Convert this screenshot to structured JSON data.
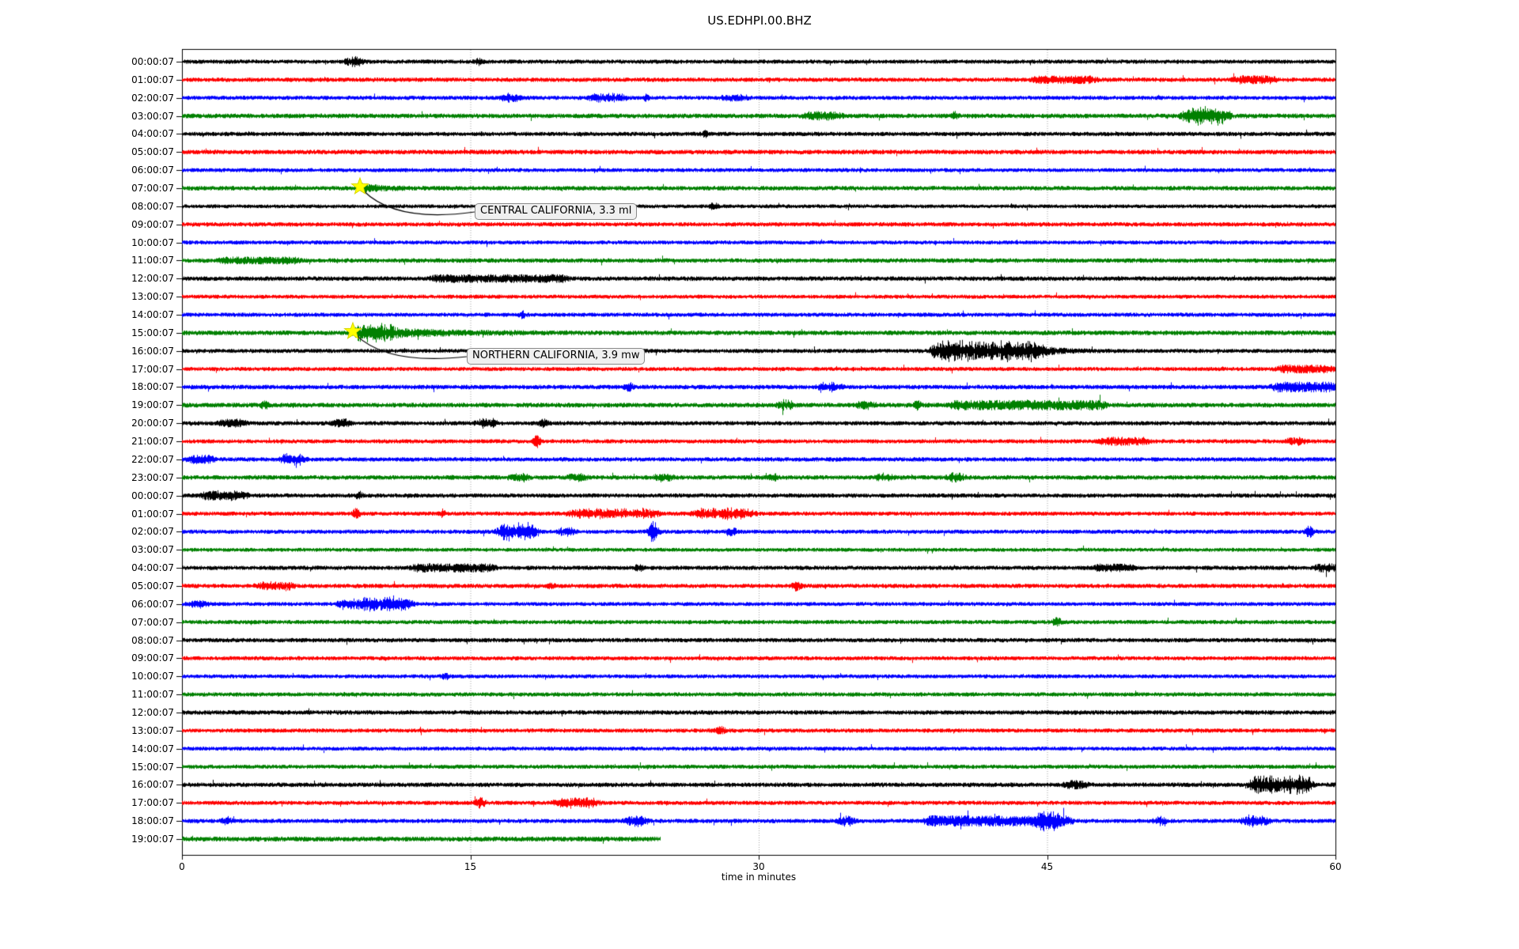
{
  "chart_data": {
    "type": "line",
    "subtype": "seismogram-helicorder",
    "title": "US.EDHPI.00.BHZ",
    "xlabel": "time in minutes",
    "x_ticks": [
      0,
      15,
      30,
      45,
      60
    ],
    "x_tick_labels": [
      "0",
      "15",
      "30",
      "45",
      "60"
    ],
    "xlim": [
      0,
      60
    ],
    "grid": "vertical dotted gridlines at 15, 30 and 45 minutes",
    "minutes_per_row": 60,
    "color_cycle": [
      "#000000",
      "#ff0000",
      "#0000ff",
      "#008000"
    ],
    "grid_color": "#9a9a9a",
    "star_color": "#ffff00",
    "annotation_border_color": "#8a8a8a",
    "annotation_bg_color": "#f0f0f0",
    "rows": [
      {
        "label": "00:00:07",
        "c": 0,
        "noise": 2.7,
        "events": [
          [
            8.6,
            9.3,
            5,
            "u"
          ],
          [
            15.2,
            15.6,
            3,
            "s"
          ]
        ]
      },
      {
        "label": "01:00:07",
        "c": 1,
        "noise": 2.8,
        "events": [
          [
            44.3,
            47.5,
            3,
            "b"
          ],
          [
            54.8,
            56.8,
            3.5,
            "b"
          ]
        ]
      },
      {
        "label": "02:00:07",
        "c": 2,
        "noise": 2.7,
        "events": [
          [
            16.7,
            17.5,
            4,
            "u"
          ],
          [
            21.2,
            23.0,
            4,
            "u"
          ],
          [
            24.0,
            24.3,
            3,
            "s"
          ],
          [
            28.2,
            29.3,
            3.5,
            "u"
          ]
        ]
      },
      {
        "label": "03:00:07",
        "c": 3,
        "noise": 3.0,
        "events": [
          [
            32.4,
            34.2,
            3.5,
            "b"
          ],
          [
            40.0,
            40.4,
            4,
            "s"
          ],
          [
            52.1,
            54.4,
            10,
            "u"
          ]
        ]
      },
      {
        "label": "04:00:07",
        "c": 0,
        "noise": 2.8,
        "events": [
          [
            27.0,
            27.4,
            3,
            "s"
          ]
        ]
      },
      {
        "label": "05:00:07",
        "c": 1,
        "noise": 3.0,
        "events": []
      },
      {
        "label": "06:00:07",
        "c": 2,
        "noise": 2.6,
        "events": []
      },
      {
        "label": "07:00:07",
        "c": 3,
        "noise": 2.9,
        "events": [
          [
            9.3,
            12.5,
            4,
            "d"
          ]
        ]
      },
      {
        "label": "08:00:07",
        "c": 0,
        "noise": 2.5,
        "events": [
          [
            27.4,
            27.9,
            3.5,
            "s"
          ]
        ]
      },
      {
        "label": "09:00:07",
        "c": 1,
        "noise": 2.8,
        "events": []
      },
      {
        "label": "10:00:07",
        "c": 2,
        "noise": 2.6,
        "events": []
      },
      {
        "label": "11:00:07",
        "c": 3,
        "noise": 2.9,
        "events": [
          [
            2.0,
            6.0,
            2.5,
            "b"
          ]
        ]
      },
      {
        "label": "12:00:07",
        "c": 0,
        "noise": 2.9,
        "events": [
          [
            13.0,
            20.0,
            3,
            "b"
          ]
        ]
      },
      {
        "label": "13:00:07",
        "c": 1,
        "noise": 2.6,
        "events": []
      },
      {
        "label": "14:00:07",
        "c": 2,
        "noise": 2.7,
        "events": [
          [
            17.5,
            17.9,
            3.5,
            "s"
          ]
        ]
      },
      {
        "label": "15:00:07",
        "c": 3,
        "noise": 3.0,
        "events": [
          [
            8.95,
            10.8,
            10,
            "u"
          ],
          [
            10.8,
            20.0,
            4.5,
            "d"
          ]
        ]
      },
      {
        "label": "16:00:07",
        "c": 0,
        "noise": 2.7,
        "events": [
          [
            39.1,
            44.6,
            13,
            "u"
          ],
          [
            44.6,
            47.5,
            5,
            "d"
          ]
        ]
      },
      {
        "label": "17:00:07",
        "c": 1,
        "noise": 2.6,
        "events": [
          [
            57.0,
            59.8,
            3.5,
            "b"
          ]
        ]
      },
      {
        "label": "18:00:07",
        "c": 2,
        "noise": 2.9,
        "events": [
          [
            23.0,
            23.5,
            4,
            "s"
          ],
          [
            33.2,
            34.2,
            5,
            "u"
          ],
          [
            56.8,
            59.9,
            4.5,
            "b"
          ]
        ]
      },
      {
        "label": "19:00:07",
        "c": 3,
        "noise": 3.0,
        "events": [
          [
            4.0,
            4.6,
            3.5,
            "s"
          ],
          [
            31.1,
            31.7,
            5,
            "u"
          ],
          [
            35.2,
            35.9,
            4.5,
            "u"
          ],
          [
            38.0,
            38.5,
            4,
            "s"
          ],
          [
            40.0,
            48.0,
            4,
            "b"
          ]
        ]
      },
      {
        "label": "20:00:07",
        "c": 0,
        "noise": 2.8,
        "events": [
          [
            2.0,
            3.2,
            3.5,
            "b"
          ],
          [
            7.9,
            8.6,
            5,
            "u"
          ],
          [
            15.4,
            16.3,
            5,
            "u"
          ],
          [
            18.5,
            19.1,
            3.5,
            "s"
          ]
        ]
      },
      {
        "label": "21:00:07",
        "c": 1,
        "noise": 2.7,
        "events": [
          [
            18.2,
            18.7,
            6,
            "s"
          ],
          [
            47.8,
            50.2,
            3.5,
            "b"
          ],
          [
            57.5,
            58.3,
            4,
            "u"
          ]
        ]
      },
      {
        "label": "22:00:07",
        "c": 2,
        "noise": 2.8,
        "events": [
          [
            0.4,
            1.6,
            3.5,
            "b"
          ],
          [
            5.2,
            6.3,
            6,
            "u"
          ]
        ]
      },
      {
        "label": "23:00:07",
        "c": 3,
        "noise": 2.9,
        "events": [
          [
            17.2,
            17.9,
            4.5,
            "u"
          ],
          [
            20.2,
            20.9,
            4.5,
            "u"
          ],
          [
            24.7,
            25.4,
            4.5,
            "u"
          ],
          [
            30.5,
            31.0,
            3.5,
            "s"
          ],
          [
            36.2,
            36.9,
            4.5,
            "u"
          ],
          [
            39.9,
            40.6,
            4.5,
            "u"
          ]
        ]
      },
      {
        "label": "00:00:07",
        "c": 0,
        "noise": 2.8,
        "events": [
          [
            1.1,
            3.3,
            5,
            "u"
          ],
          [
            9.0,
            9.4,
            4,
            "s"
          ]
        ]
      },
      {
        "label": "01:00:07",
        "c": 1,
        "noise": 2.7,
        "events": [
          [
            8.85,
            9.25,
            6,
            "s"
          ],
          [
            13.4,
            13.7,
            4,
            "s"
          ],
          [
            20.2,
            24.7,
            5,
            "u"
          ],
          [
            26.7,
            29.7,
            6,
            "u"
          ]
        ]
      },
      {
        "label": "02:00:07",
        "c": 2,
        "noise": 2.7,
        "events": [
          [
            16.5,
            18.4,
            11,
            "u"
          ],
          [
            19.7,
            20.3,
            6,
            "u"
          ],
          [
            24.2,
            24.8,
            12,
            "s"
          ],
          [
            28.3,
            28.9,
            4,
            "s"
          ],
          [
            58.4,
            58.9,
            6,
            "s"
          ]
        ]
      },
      {
        "label": "03:00:07",
        "c": 3,
        "noise": 2.5,
        "events": []
      },
      {
        "label": "04:00:07",
        "c": 0,
        "noise": 2.8,
        "events": [
          [
            12.0,
            16.2,
            3.5,
            "b"
          ],
          [
            23.5,
            24.0,
            3,
            "s"
          ],
          [
            47.5,
            49.5,
            3,
            "b"
          ],
          [
            59.0,
            60.0,
            3.5,
            "b"
          ]
        ]
      },
      {
        "label": "05:00:07",
        "c": 1,
        "noise": 2.8,
        "events": [
          [
            3.9,
            5.7,
            4,
            "u"
          ],
          [
            19.0,
            19.4,
            3,
            "s"
          ],
          [
            31.7,
            32.2,
            5,
            "s"
          ]
        ]
      },
      {
        "label": "06:00:07",
        "c": 2,
        "noise": 2.6,
        "events": [
          [
            0.4,
            1.3,
            4,
            "u"
          ],
          [
            8.2,
            9.4,
            6,
            "u"
          ],
          [
            9.4,
            11.9,
            9,
            "u"
          ]
        ]
      },
      {
        "label": "07:00:07",
        "c": 3,
        "noise": 2.7,
        "events": [
          [
            45.2,
            45.8,
            4,
            "s"
          ]
        ]
      },
      {
        "label": "08:00:07",
        "c": 0,
        "noise": 2.8,
        "events": []
      },
      {
        "label": "09:00:07",
        "c": 1,
        "noise": 2.7,
        "events": []
      },
      {
        "label": "10:00:07",
        "c": 2,
        "noise": 2.6,
        "events": [
          [
            13.5,
            13.9,
            3,
            "s"
          ]
        ]
      },
      {
        "label": "11:00:07",
        "c": 3,
        "noise": 2.7,
        "events": []
      },
      {
        "label": "12:00:07",
        "c": 0,
        "noise": 2.9,
        "events": []
      },
      {
        "label": "13:00:07",
        "c": 1,
        "noise": 2.7,
        "events": [
          [
            27.7,
            28.3,
            4,
            "s"
          ]
        ]
      },
      {
        "label": "14:00:07",
        "c": 2,
        "noise": 2.6,
        "events": []
      },
      {
        "label": "15:00:07",
        "c": 3,
        "noise": 2.7,
        "events": []
      },
      {
        "label": "16:00:07",
        "c": 0,
        "noise": 2.9,
        "events": [
          [
            46.0,
            47.0,
            3.5,
            "b"
          ],
          [
            55.6,
            58.7,
            11,
            "u"
          ]
        ]
      },
      {
        "label": "17:00:07",
        "c": 1,
        "noise": 2.7,
        "events": [
          [
            15.2,
            15.8,
            5,
            "s"
          ],
          [
            19.4,
            21.6,
            5,
            "u"
          ]
        ]
      },
      {
        "label": "18:00:07",
        "c": 2,
        "noise": 2.8,
        "events": [
          [
            2.0,
            2.6,
            4,
            "s"
          ],
          [
            23.1,
            24.1,
            6,
            "u"
          ],
          [
            34.2,
            34.9,
            5,
            "u"
          ],
          [
            38.7,
            46.2,
            5,
            "b"
          ],
          [
            44.5,
            45.6,
            8,
            "u"
          ],
          [
            50.5,
            51.2,
            4,
            "s"
          ],
          [
            55.2,
            56.4,
            6,
            "u"
          ]
        ]
      },
      {
        "label": "19:00:07",
        "c": 3,
        "noise": 3.2,
        "end": 24.9,
        "events": []
      }
    ],
    "annotations": [
      {
        "label": "CENTRAL CALIFORNIA, 3.3 ml",
        "row": 7,
        "minute": 9.27
      },
      {
        "label": "NORTHERN CALIFORNIA, 3.9 mw",
        "row": 15,
        "minute": 8.9
      }
    ]
  }
}
